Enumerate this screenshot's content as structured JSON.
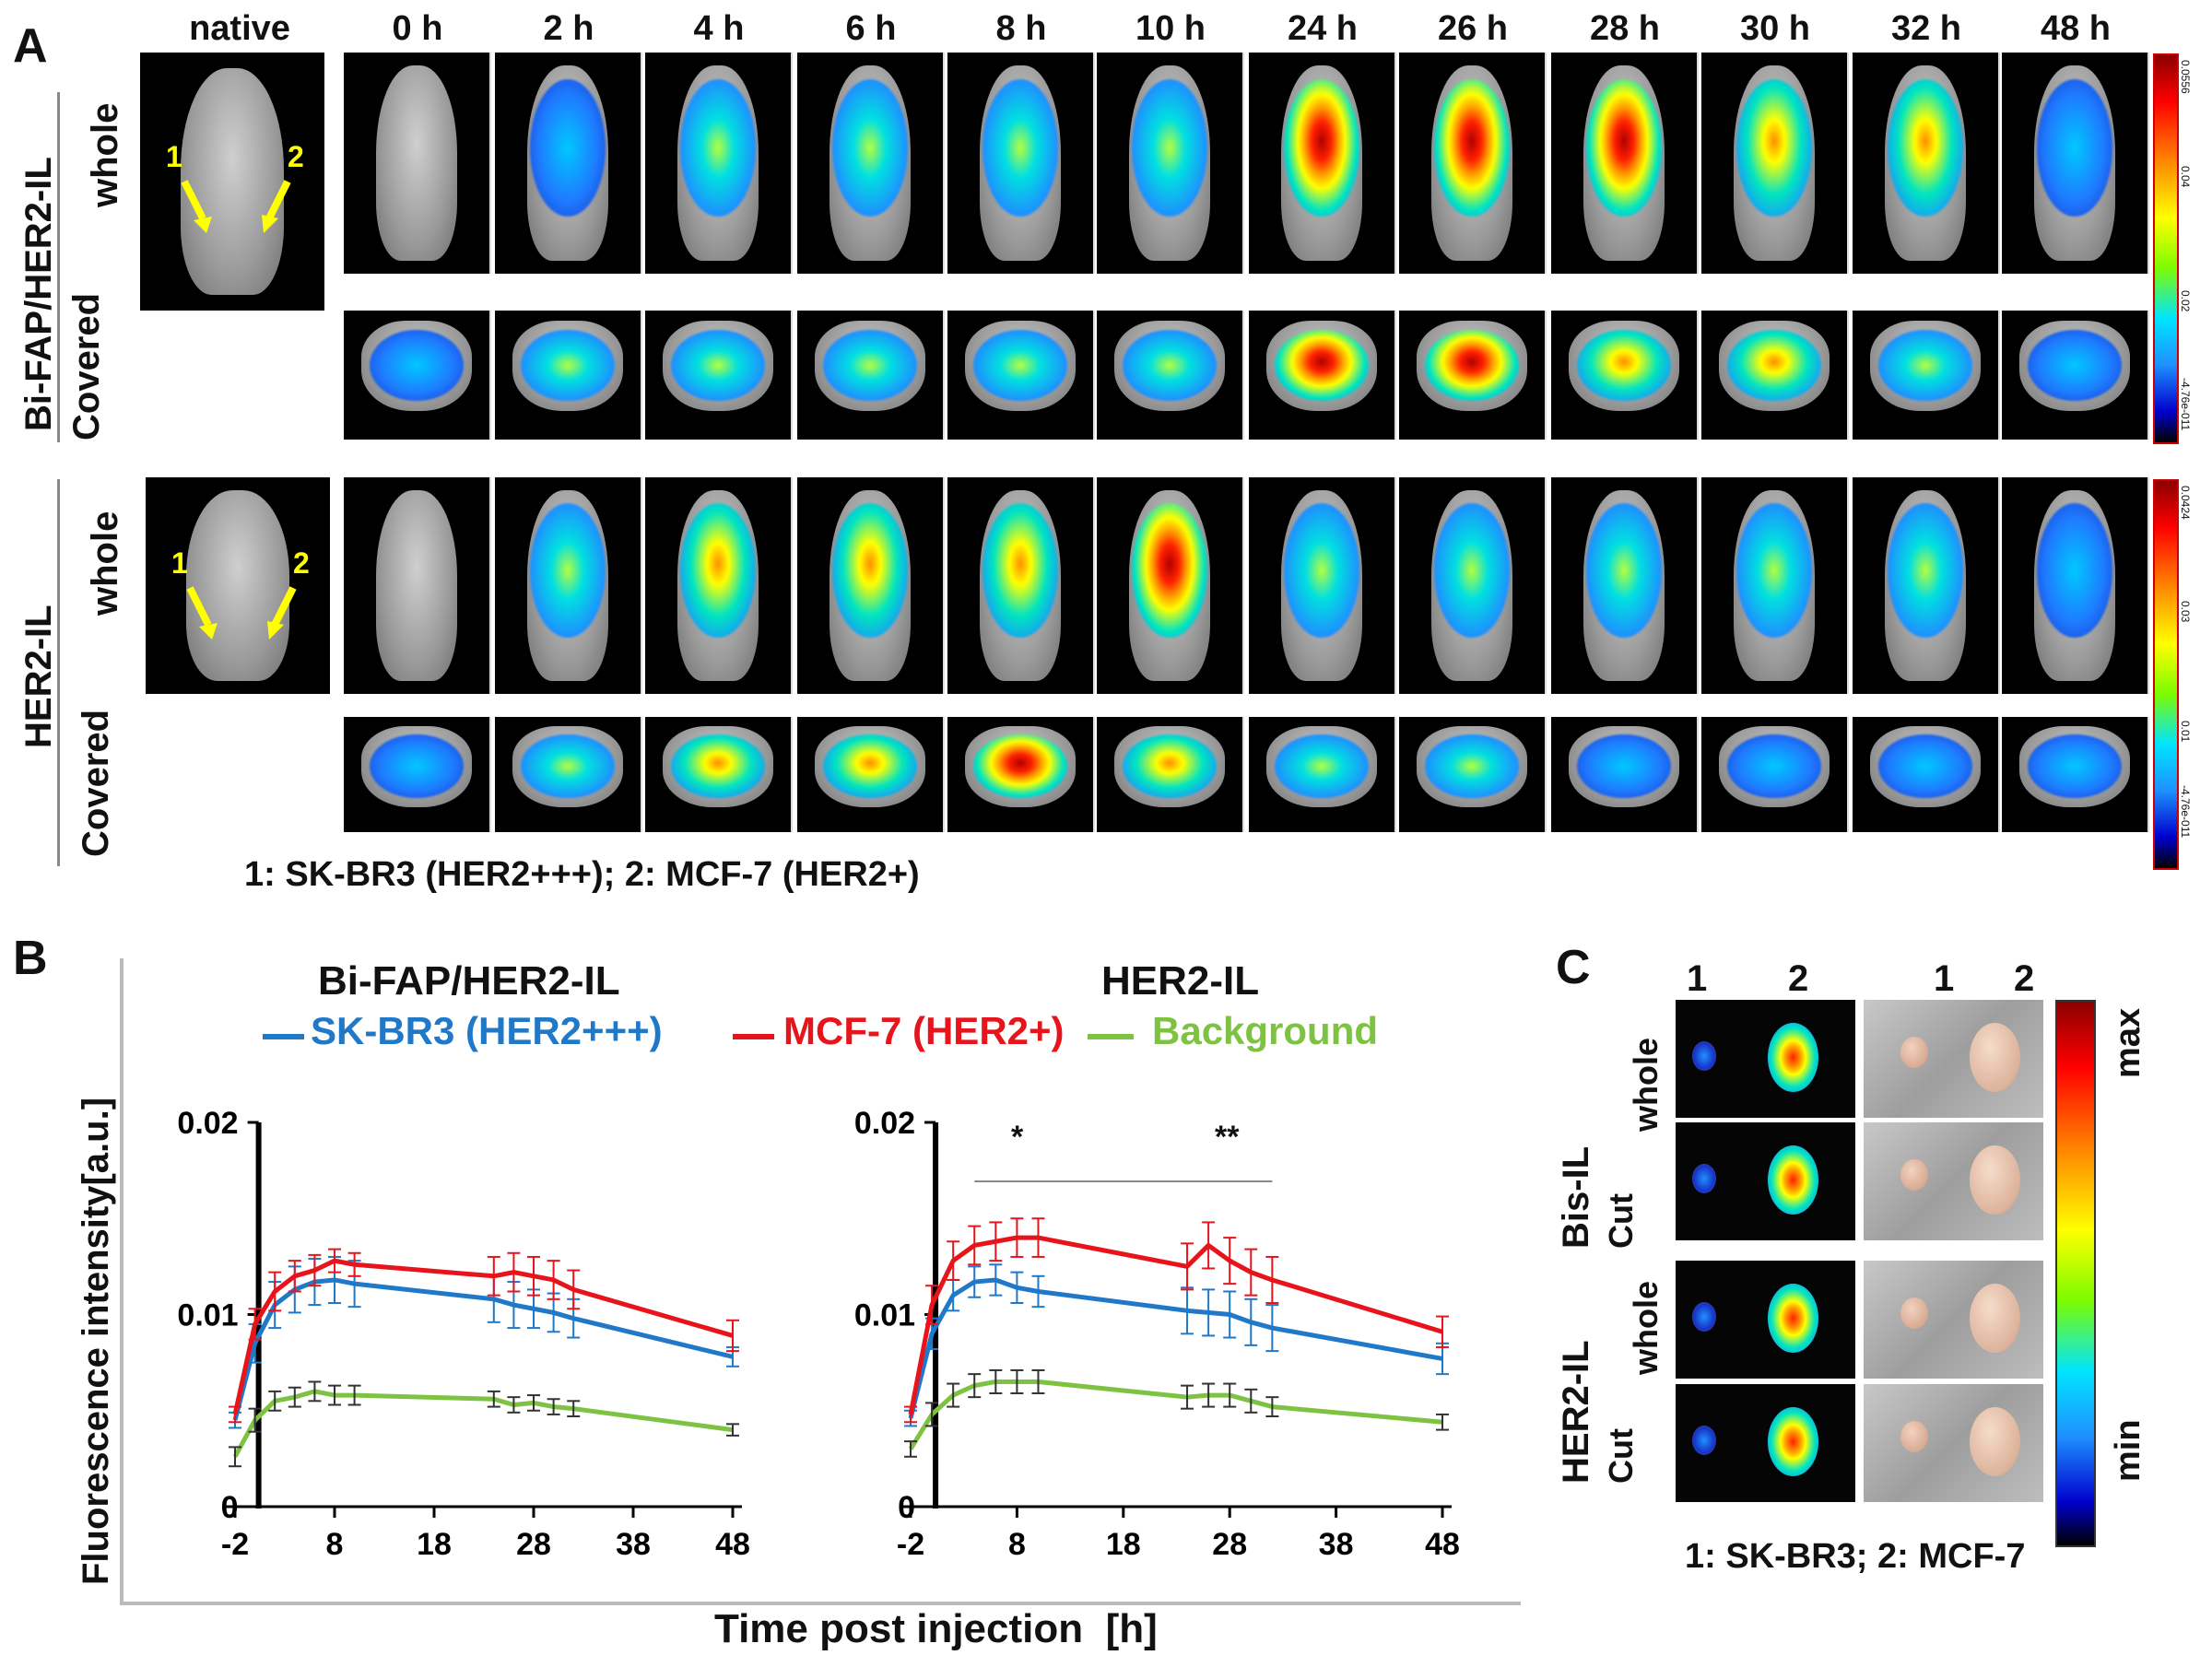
{
  "panel_a": {
    "letter": "A",
    "native_label": "native",
    "time_labels": [
      "0 h",
      "2 h",
      "4 h",
      "6 h",
      "8 h",
      "10 h",
      "24 h",
      "26 h",
      "28 h",
      "30 h",
      "32 h",
      "48 h"
    ],
    "group1_label": "Bi-FAP/HER2-IL",
    "group2_label": "HER2-IL",
    "row_whole": "whole",
    "row_covered": "Covered",
    "arrow_label_1": "1",
    "arrow_label_2": "2",
    "caption": "1: SK-BR3 (HER2+++); 2: MCF-7 (HER2+)",
    "colorbar_ticks_top": [
      "-4.76e-011",
      "0.02",
      "0.04",
      "0.0556"
    ],
    "colorbar_ticks_bottom": [
      "-4.76e-011",
      "0.01",
      "0.03",
      "0.0424"
    ]
  },
  "panel_b": {
    "letter": "B",
    "left_title": "Bi-FAP/HER2-IL",
    "right_title": "HER2-IL",
    "ylabel": "Fluorescence intensity[a.u.]",
    "xlabel": "Time post injection  [h]",
    "legend": [
      {
        "name": "SK-BR3 (HER2+++)",
        "color": "#1f78c8"
      },
      {
        "name": "MCF-7 (HER2+)",
        "color": "#e8141c"
      },
      {
        "name": "Background",
        "color": "#7ec242"
      }
    ],
    "sig_1": "*",
    "sig_2": "**"
  },
  "chart_data": [
    {
      "type": "line",
      "title": "Bi-FAP/HER2-IL",
      "xlabel": "Time post injection  [h]",
      "ylabel": "Fluorescence intensity[a.u.]",
      "xlim": [
        -2,
        48
      ],
      "ylim": [
        0,
        0.02
      ],
      "xticks": [
        "-2",
        "8",
        "18",
        "28",
        "38",
        "48"
      ],
      "yticks": [
        "0",
        "0.01",
        "0.02"
      ],
      "x": [
        -2,
        0,
        2,
        4,
        6,
        8,
        10,
        24,
        26,
        28,
        30,
        32,
        48
      ],
      "series": [
        {
          "name": "SK-BR3 (HER2+++)",
          "color": "#1f78c8",
          "values": [
            0.0045,
            0.0085,
            0.0105,
            0.0113,
            0.0117,
            0.0118,
            0.0116,
            0.0108,
            0.0105,
            0.0103,
            0.0101,
            0.0098,
            0.0078
          ],
          "errors": [
            0.0004,
            0.001,
            0.0012,
            0.0012,
            0.0012,
            0.0012,
            0.0012,
            0.0012,
            0.0012,
            0.001,
            0.001,
            0.001,
            0.0005
          ]
        },
        {
          "name": "MCF-7 (HER2+)",
          "color": "#e8141c",
          "values": [
            0.0048,
            0.0095,
            0.0112,
            0.012,
            0.0123,
            0.0128,
            0.0126,
            0.012,
            0.0122,
            0.012,
            0.0118,
            0.0113,
            0.0089
          ],
          "errors": [
            0.0004,
            0.0008,
            0.001,
            0.0008,
            0.0008,
            0.0006,
            0.0006,
            0.001,
            0.001,
            0.001,
            0.001,
            0.001,
            0.0008
          ]
        },
        {
          "name": "Background",
          "color": "#7ec242",
          "values": [
            0.0026,
            0.0045,
            0.0055,
            0.0057,
            0.006,
            0.0058,
            0.0058,
            0.0056,
            0.0053,
            0.0054,
            0.0052,
            0.0051,
            0.004
          ],
          "errors": [
            0.0005,
            0.0006,
            0.0005,
            0.0005,
            0.0005,
            0.0005,
            0.0005,
            0.0004,
            0.0004,
            0.0004,
            0.0004,
            0.0004,
            0.0003
          ]
        }
      ]
    },
    {
      "type": "line",
      "title": "HER2-IL",
      "xlabel": "Time post injection  [h]",
      "ylabel": "Fluorescence intensity[a.u.]",
      "xlim": [
        -2,
        48
      ],
      "ylim": [
        0,
        0.02
      ],
      "xticks": [
        "-2",
        "8",
        "18",
        "28",
        "38",
        "48"
      ],
      "yticks": [
        "0",
        "0.01",
        "0.02"
      ],
      "x": [
        -2,
        0,
        2,
        4,
        6,
        8,
        10,
        24,
        26,
        28,
        30,
        32,
        48
      ],
      "series": [
        {
          "name": "SK-BR3 (HER2+++)",
          "color": "#1f78c8",
          "values": [
            0.0046,
            0.009,
            0.011,
            0.0117,
            0.0118,
            0.0114,
            0.0112,
            0.0102,
            0.0101,
            0.01,
            0.0096,
            0.0093,
            0.0077
          ],
          "errors": [
            0.0004,
            0.0008,
            0.0008,
            0.0008,
            0.0008,
            0.0008,
            0.0008,
            0.0012,
            0.0012,
            0.0012,
            0.0012,
            0.0012,
            0.0008
          ]
        },
        {
          "name": "MCF-7 (HER2+)",
          "color": "#e8141c",
          "values": [
            0.0048,
            0.0105,
            0.0128,
            0.0136,
            0.0138,
            0.014,
            0.014,
            0.0125,
            0.0136,
            0.0128,
            0.0122,
            0.0118,
            0.0091
          ],
          "errors": [
            0.0004,
            0.001,
            0.001,
            0.001,
            0.001,
            0.001,
            0.001,
            0.0012,
            0.0012,
            0.0012,
            0.0012,
            0.0012,
            0.0008
          ]
        },
        {
          "name": "Background",
          "color": "#7ec242",
          "values": [
            0.003,
            0.0048,
            0.0058,
            0.0063,
            0.0065,
            0.0065,
            0.0065,
            0.0057,
            0.0058,
            0.0058,
            0.0055,
            0.0052,
            0.0044
          ],
          "errors": [
            0.0004,
            0.0006,
            0.0006,
            0.0006,
            0.0006,
            0.0006,
            0.0006,
            0.0006,
            0.0006,
            0.0006,
            0.0006,
            0.0005,
            0.0004
          ]
        }
      ]
    }
  ],
  "panel_c": {
    "letter": "C",
    "col_labels": [
      "1",
      "2",
      "1",
      "2"
    ],
    "group1_label": "Bis-IL",
    "group2_label": "HER2-IL",
    "row_whole": "whole",
    "row_cut": "Cut",
    "colorbar_max": "max",
    "colorbar_min": "min",
    "caption": "1: SK-BR3; 2: MCF-7"
  }
}
